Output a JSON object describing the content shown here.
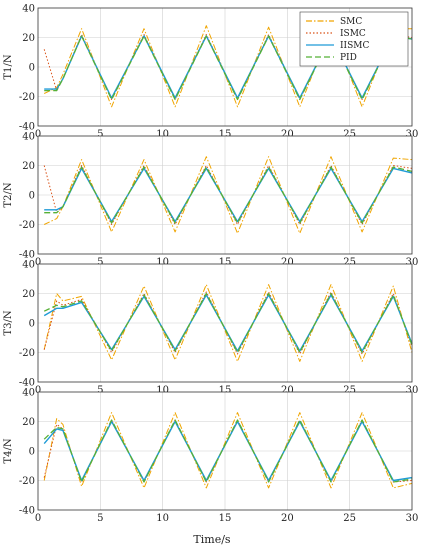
{
  "chart_data": {
    "type": "line",
    "xlabel": "Time/s",
    "xlim": [
      0,
      30
    ],
    "ylim": [
      -40,
      40
    ],
    "x_ticks": [
      "0",
      "5",
      "10",
      "15",
      "20",
      "25",
      "30"
    ],
    "y_ticks": [
      "-40",
      "-20",
      "0",
      "20",
      "40"
    ],
    "grid": true,
    "legend": {
      "placement": "top-right",
      "entries": [
        {
          "name": "SMC",
          "color": "#f0a500",
          "style": "dash-dot"
        },
        {
          "name": "ISMC",
          "color": "#d95319",
          "style": "dotted"
        },
        {
          "name": "IISMC",
          "color": "#1f9bd6",
          "style": "solid"
        },
        {
          "name": "PID",
          "color": "#55b036",
          "style": "dashed"
        }
      ]
    },
    "panels": [
      {
        "ylabel": "T1/N",
        "x": [
          0.5,
          1.5,
          2.0,
          3.5,
          5.9,
          8.5,
          11.0,
          13.5,
          16.0,
          18.5,
          21.0,
          23.5,
          26.0,
          28.5,
          30
        ],
        "series": [
          {
            "name": "SMC",
            "values": [
              -18,
              -14,
              -5,
              26,
              -27,
              26,
              -27,
              28,
              -27,
              27,
              -27,
              27,
              -27,
              26,
              26
            ]
          },
          {
            "name": "ISMC",
            "values": [
              12,
              -16,
              -8,
              22,
              -22,
              22,
              -22,
              22,
              -22,
              22,
              -22,
              22,
              -22,
              22,
              20
            ]
          },
          {
            "name": "IISMC",
            "values": [
              -15,
              -15,
              -8,
              21,
              -21,
              21,
              -21,
              21,
              -21,
              21,
              -21,
              21,
              -21,
              21,
              19
            ]
          },
          {
            "name": "PID",
            "values": [
              -16,
              -16,
              -8,
              21,
              -22,
              21,
              -22,
              21,
              -22,
              21,
              -22,
              21,
              -22,
              21,
              19
            ]
          }
        ]
      },
      {
        "ylabel": "T2/N",
        "x": [
          0.5,
          1.5,
          2.0,
          3.5,
          5.9,
          8.5,
          11.0,
          13.5,
          16.0,
          18.5,
          21.0,
          23.5,
          26.0,
          28.5,
          30
        ],
        "series": [
          {
            "name": "SMC",
            "values": [
              -20,
              -16,
              -8,
              24,
              -25,
              24,
              -25,
              26,
              -26,
              26,
              -26,
              26,
              -25,
              25,
              24
            ]
          },
          {
            "name": "ISMC",
            "values": [
              20,
              -12,
              -8,
              20,
              -20,
              20,
              -20,
              20,
              -20,
              20,
              -20,
              20,
              -20,
              20,
              18
            ]
          },
          {
            "name": "IISMC",
            "values": [
              -10,
              -10,
              -8,
              18,
              -18,
              18,
              -18,
              18,
              -18,
              18,
              -18,
              18,
              -18,
              18,
              15
            ]
          },
          {
            "name": "PID",
            "values": [
              -12,
              -12,
              -8,
              19,
              -19,
              19,
              -19,
              19,
              -19,
              19,
              -19,
              19,
              -19,
              19,
              16
            ]
          }
        ]
      },
      {
        "ylabel": "T3/N",
        "x": [
          0.5,
          1.5,
          2.0,
          3.5,
          5.9,
          8.5,
          11.0,
          13.5,
          16.0,
          18.5,
          21.0,
          23.5,
          26.0,
          28.5,
          30
        ],
        "series": [
          {
            "name": "SMC",
            "values": [
              -18,
              20,
              15,
              18,
              -25,
              25,
              -25,
              26,
              -26,
              26,
              -26,
              26,
              -26,
              25,
              -20
            ]
          },
          {
            "name": "ISMC",
            "values": [
              -18,
              15,
              12,
              16,
              -20,
              20,
              -20,
              21,
              -21,
              21,
              -21,
              21,
              -21,
              20,
              -16
            ]
          },
          {
            "name": "IISMC",
            "values": [
              5,
              10,
              10,
              14,
              -18,
              18,
              -18,
              19,
              -19,
              19,
              -19,
              19,
              -19,
              18,
              -14
            ]
          },
          {
            "name": "PID",
            "values": [
              8,
              12,
              11,
              15,
              -19,
              19,
              -19,
              20,
              -20,
              20,
              -20,
              20,
              -20,
              19,
              -15
            ]
          }
        ]
      },
      {
        "ylabel": "T4/N",
        "x": [
          0.5,
          1.5,
          2.0,
          3.5,
          5.9,
          8.5,
          11.0,
          13.5,
          16.0,
          18.5,
          21.0,
          23.5,
          26.0,
          28.5,
          30
        ],
        "series": [
          {
            "name": "SMC",
            "values": [
              -20,
              22,
              18,
              -24,
              26,
              -25,
              26,
              -25,
              26,
              -25,
              26,
              -25,
              26,
              -25,
              -22
            ]
          },
          {
            "name": "ISMC",
            "values": [
              -18,
              18,
              15,
              -21,
              21,
              -21,
              21,
              -21,
              21,
              -21,
              21,
              -21,
              21,
              -21,
              -20
            ]
          },
          {
            "name": "IISMC",
            "values": [
              5,
              15,
              14,
              -20,
              20,
              -20,
              20,
              -20,
              20,
              -20,
              20,
              -20,
              20,
              -20,
              -18
            ]
          },
          {
            "name": "PID",
            "values": [
              8,
              16,
              15,
              -21,
              21,
              -21,
              21,
              -21,
              21,
              -21,
              21,
              -21,
              21,
              -21,
              -19
            ]
          }
        ]
      }
    ]
  }
}
